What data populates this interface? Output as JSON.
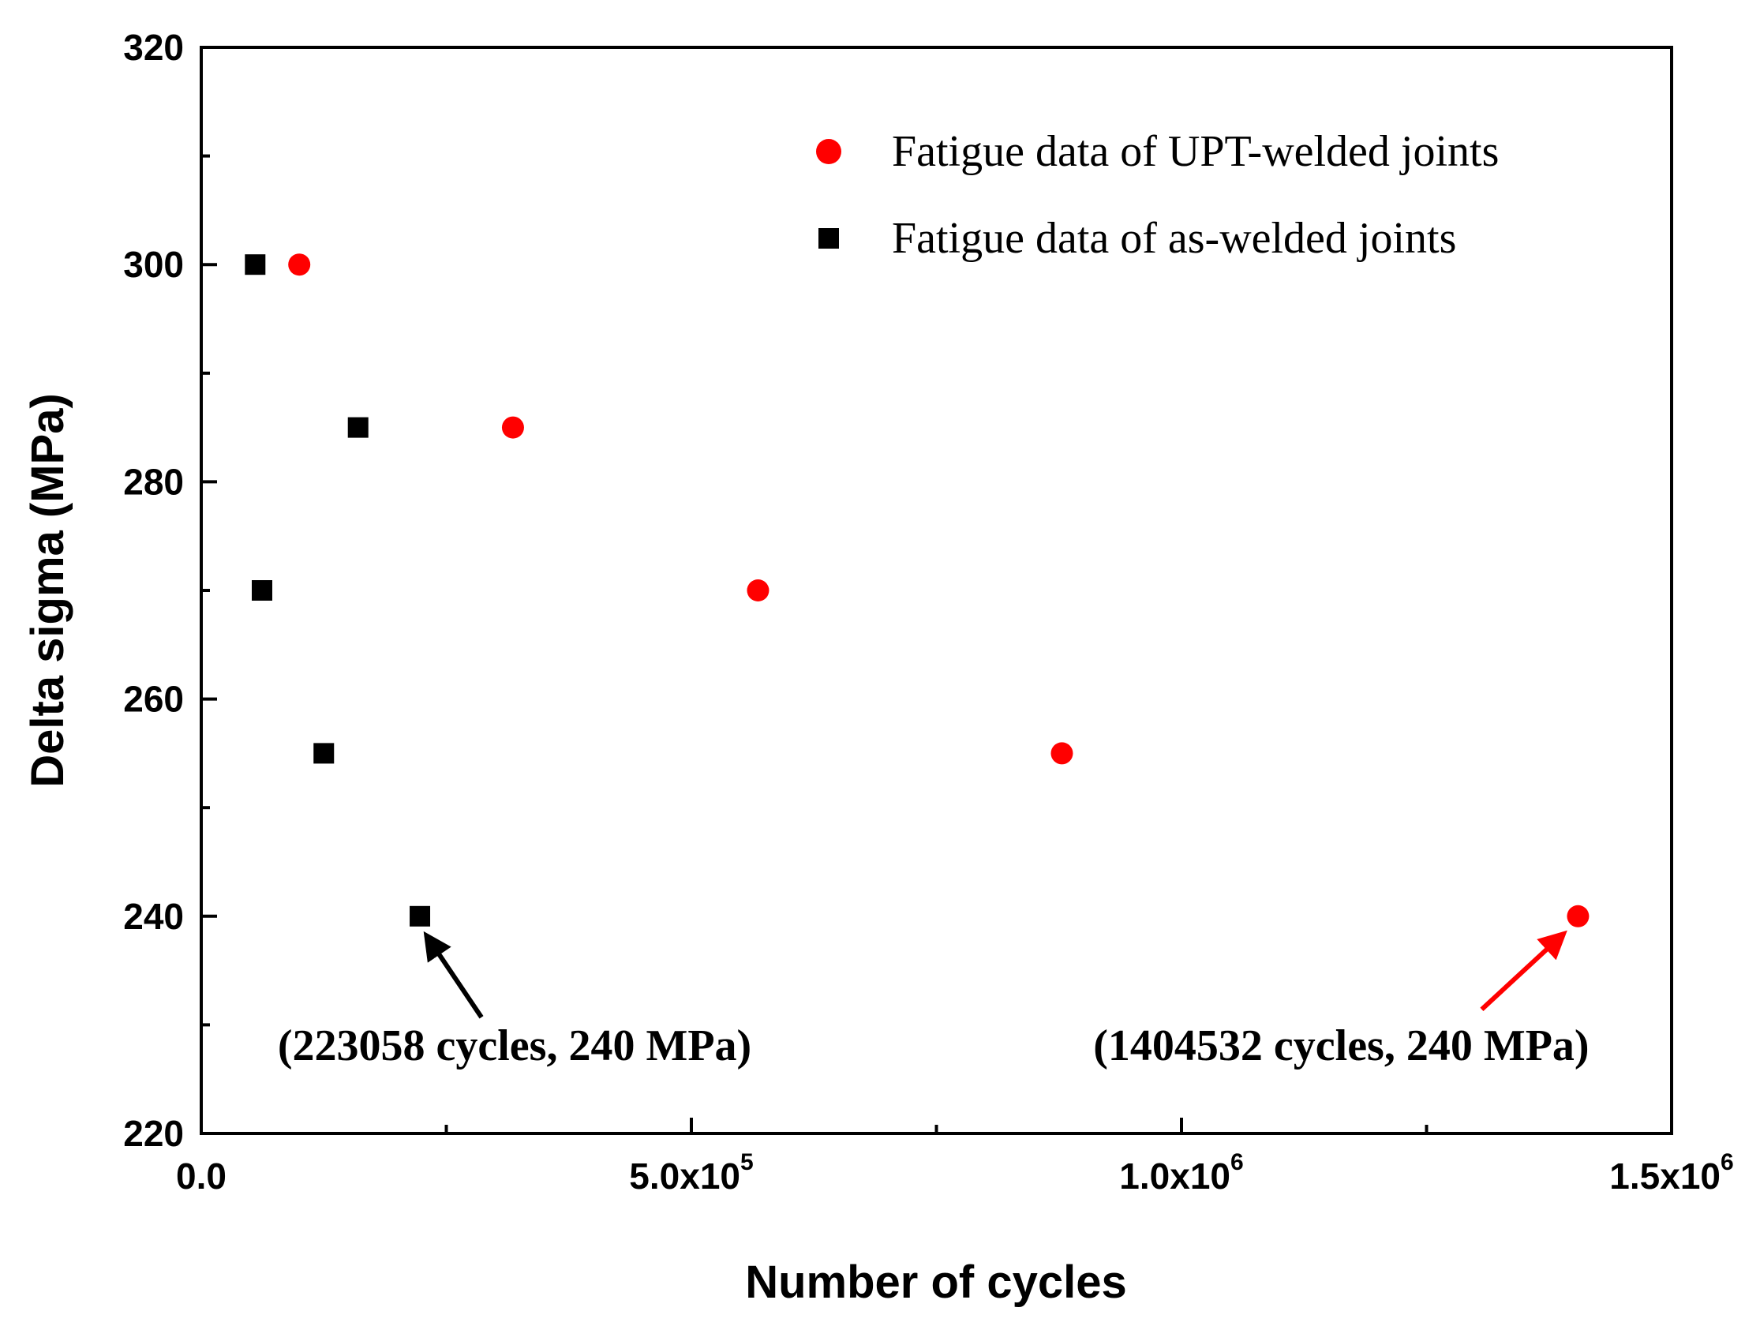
{
  "chart_data": {
    "type": "scatter",
    "xlabel": "Number of cycles",
    "ylabel": "Delta sigma (MPa)",
    "xlim": [
      0,
      1500000
    ],
    "ylim": [
      220,
      320
    ],
    "x_ticks": [
      {
        "value": 0,
        "mantissa": "0.0",
        "exp": ""
      },
      {
        "value": 500000,
        "mantissa": "5.0x10",
        "exp": "5"
      },
      {
        "value": 1000000,
        "mantissa": "1.0x10",
        "exp": "6"
      },
      {
        "value": 1500000,
        "mantissa": "1.5x10",
        "exp": "6"
      }
    ],
    "x_minor_ticks": [
      250000,
      750000,
      1250000
    ],
    "y_ticks": [
      220,
      240,
      260,
      280,
      300,
      320
    ],
    "y_minor_ticks": [
      230,
      250,
      270,
      290,
      310
    ],
    "grid": false,
    "legend_position": "top-right",
    "series": [
      {
        "name": "Fatigue data of UPT-welded joints",
        "marker": "circle",
        "color": "#ff0000",
        "points": [
          {
            "x": 100000,
            "y": 300
          },
          {
            "x": 318000,
            "y": 285
          },
          {
            "x": 568000,
            "y": 270
          },
          {
            "x": 878000,
            "y": 255
          },
          {
            "x": 1404532,
            "y": 240
          }
        ]
      },
      {
        "name": "Fatigue data of as-welded joints",
        "marker": "square",
        "color": "#000000",
        "points": [
          {
            "x": 55000,
            "y": 300
          },
          {
            "x": 160000,
            "y": 285
          },
          {
            "x": 62000,
            "y": 270
          },
          {
            "x": 125000,
            "y": 255
          },
          {
            "x": 223058,
            "y": 240
          }
        ]
      }
    ],
    "annotations": [
      {
        "text": "(223058 cycles, 240 MPa)",
        "x": 223058,
        "y": 240,
        "color": "#000000"
      },
      {
        "text": "(1404532 cycles, 240 MPa)",
        "x": 1404532,
        "y": 240,
        "color": "#ff0000"
      }
    ]
  }
}
